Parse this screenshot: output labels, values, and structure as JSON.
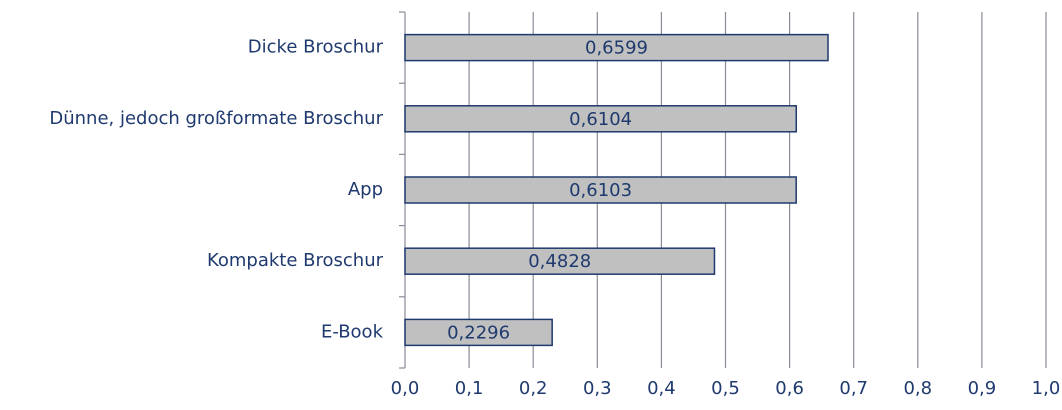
{
  "chart_data": {
    "type": "bar",
    "orientation": "horizontal",
    "categories": [
      "Dicke Broschur",
      "Dünne, jedoch großformate Broschur",
      "App",
      "Kompakte Broschur",
      "E-Book"
    ],
    "values": [
      0.6599,
      0.6104,
      0.6103,
      0.4828,
      0.2296
    ],
    "value_labels": [
      "0,6599",
      "0,6104",
      "0,6103",
      "0,4828",
      "0,2296"
    ],
    "color": "#c0c0c0",
    "xlim": [
      0,
      1
    ],
    "xticks": [
      {
        "value": 0,
        "label": "0,0"
      },
      {
        "value": 0.1,
        "label": "0,1"
      },
      {
        "value": 0.2,
        "label": "0,2"
      },
      {
        "value": 0.3,
        "label": "0,3"
      },
      {
        "value": 0.4,
        "label": "0,4"
      },
      {
        "value": 0.5,
        "label": "0,5"
      },
      {
        "value": 0.6,
        "label": "0,6"
      },
      {
        "value": 0.7,
        "label": "0,7"
      },
      {
        "value": 0.8,
        "label": "0,8"
      },
      {
        "value": 0.9,
        "label": "0,9"
      },
      {
        "value": 1,
        "label": "1,0"
      }
    ],
    "grid": true
  }
}
